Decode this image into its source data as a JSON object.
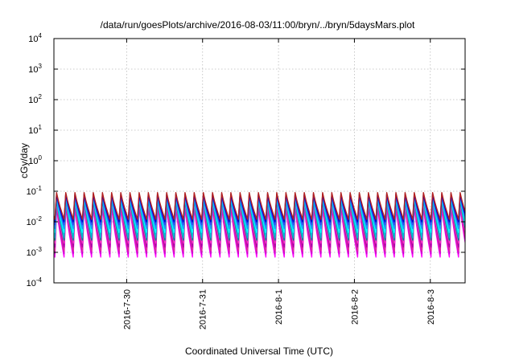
{
  "chart_data": {
    "type": "line",
    "title": "/data/run/goesPlots/archive/2016-08-03/11:00/bryn/../bryn/5daysMars.plot",
    "xlabel": "Coordinated Universal Time (UTC)",
    "ylabel": "cGy/day",
    "y_scale": "log",
    "ylim_exponent": [
      -4,
      4
    ],
    "y_ticks": [
      {
        "base": "10",
        "exp": "-4"
      },
      {
        "base": "10",
        "exp": "-3"
      },
      {
        "base": "10",
        "exp": "-2"
      },
      {
        "base": "10",
        "exp": "-1"
      },
      {
        "base": "10",
        "exp": "0"
      },
      {
        "base": "10",
        "exp": "1"
      },
      {
        "base": "10",
        "exp": "2"
      },
      {
        "base": "10",
        "exp": "3"
      },
      {
        "base": "10",
        "exp": "4"
      }
    ],
    "xlim": [
      "2016-07-29T01:00",
      "2016-08-03T11:00"
    ],
    "x_ticks": [
      "2016-7-30",
      "2016-7-31",
      "2016-8-1",
      "2016-8-2",
      "2016-8-3"
    ],
    "x_tick_dates": [
      "2016-07-30T00:00",
      "2016-07-31T00:00",
      "2016-08-01T00:00",
      "2016-08-02T00:00",
      "2016-08-03T00:00"
    ],
    "grid": true,
    "legend": "none",
    "pattern": {
      "description_hours_per_cycle": 2.9,
      "first_peak": "2016-07-29T01:50"
    },
    "series": [
      {
        "color": "#ff00ff",
        "peak": 0.03,
        "trough": 0.0007
      },
      {
        "color": "#cc00cc",
        "peak": 0.035,
        "trough": 0.0009
      },
      {
        "color": "#dd3399",
        "peak": 0.04,
        "trough": 0.0011
      },
      {
        "color": "#aa00aa",
        "peak": 0.05,
        "trough": 0.0015
      },
      {
        "color": "#ff33cc",
        "peak": 0.045,
        "trough": 0.002
      },
      {
        "color": "#008b8b",
        "peak": 0.055,
        "trough": 0.0025
      },
      {
        "color": "#00bcd4",
        "peak": 0.06,
        "trough": 0.003
      },
      {
        "color": "#00ffff",
        "peak": 0.065,
        "trough": 0.0045
      },
      {
        "color": "#1e90ff",
        "peak": 0.07,
        "trough": 0.006
      },
      {
        "color": "#3344ee",
        "peak": 0.075,
        "trough": 0.008
      },
      {
        "color": "#0000cd",
        "peak": 0.08,
        "trough": 0.01
      },
      {
        "color": "#b22222",
        "peak": 0.09,
        "trough": 0.012
      }
    ]
  }
}
